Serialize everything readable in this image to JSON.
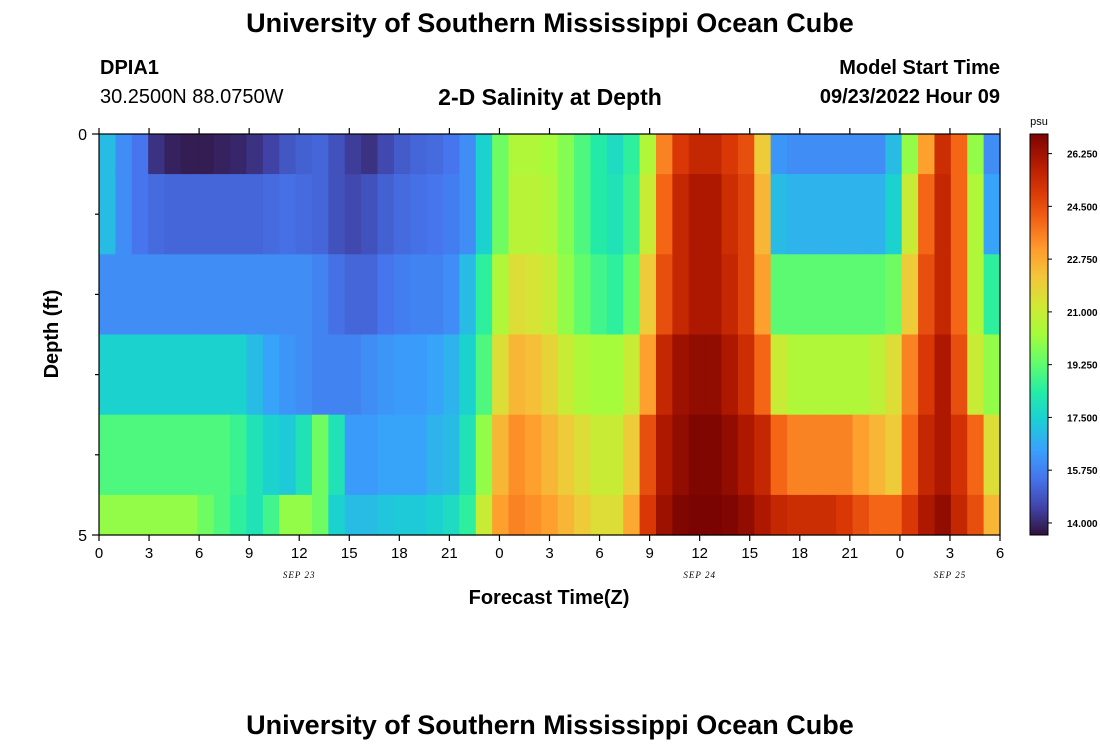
{
  "header": {
    "title": "University of Southern Mississippi Ocean Cube",
    "station_id": "DPIA1",
    "location": "30.2500N  88.0750W",
    "plot_title": "2-D Salinity at Depth",
    "model_start_label": "Model Start Time",
    "model_start_value": "09/23/2022 Hour 09"
  },
  "footer": {
    "title": "University of Southern Mississippi Ocean Cube"
  },
  "chart_data": {
    "type": "heatmap",
    "title": "2-D Salinity at Depth",
    "xlabel": "Forecast Time(Z)",
    "ylabel": "Depth (ft)",
    "ylim": [
      0,
      5
    ],
    "y_ticks": [
      "0",
      "5"
    ],
    "x_hours": [
      0,
      54
    ],
    "x_tick_labels": [
      "0",
      "3",
      "6",
      "9",
      "12",
      "15",
      "18",
      "21",
      "0",
      "3",
      "6",
      "9",
      "12",
      "15",
      "18",
      "21",
      "0",
      "3",
      "6"
    ],
    "date_labels": [
      {
        "label": "SEP 23",
        "hour": 12
      },
      {
        "label": "SEP 24",
        "hour": 36
      },
      {
        "label": "SEP 25",
        "hour": 51
      }
    ],
    "colorbar": {
      "unit": "psu",
      "min": 13.6,
      "max": 26.9,
      "ticks": [
        "14.000",
        "15.750",
        "17.500",
        "19.250",
        "21.000",
        "22.750",
        "24.500",
        "26.250"
      ],
      "colors": [
        "#30123b",
        "#4145ab",
        "#4675ed",
        "#39a2fc",
        "#1bcfd4",
        "#24eca6",
        "#61fc6c",
        "#a4fc3b",
        "#d1e834",
        "#f3c63a",
        "#fe9b2d",
        "#f36315",
        "#d93806",
        "#b11901",
        "#7a0402"
      ]
    },
    "depth_rows": [
      "0-0.5 ft",
      "0.5-1.5 ft",
      "1.5-2.5 ft",
      "2.5-3.5 ft",
      "3.5-4.5 ft",
      "4.5-5 ft"
    ],
    "hourly_columns": [
      "hours 0-54 at 1-hour resolution, 55 values per depth row"
    ],
    "salinity": [
      [
        17,
        16,
        15.5,
        14.2,
        13.9,
        13.8,
        13.8,
        13.9,
        14,
        14.2,
        14.5,
        14.9,
        15.1,
        15.2,
        14.8,
        14.4,
        14.2,
        14.6,
        15,
        15.2,
        15.3,
        15.5,
        16,
        17.5,
        19.5,
        20.5,
        20.5,
        20.3,
        19.8,
        19,
        18.3,
        17.8,
        18.5,
        20.5,
        23.5,
        25,
        25.5,
        25.5,
        25,
        24.5,
        22,
        16.2,
        16,
        16,
        16,
        16,
        16,
        16,
        17,
        20,
        23,
        25.3,
        24,
        20,
        16
      ],
      [
        17,
        16,
        15.5,
        15.3,
        15.2,
        15.2,
        15.2,
        15.2,
        15.2,
        15.2,
        15.3,
        15.4,
        15.3,
        15.2,
        14.8,
        14.6,
        14.8,
        15.1,
        15.3,
        15.4,
        15.5,
        15.7,
        16,
        17.5,
        19.5,
        20.7,
        20.7,
        20.5,
        19.8,
        19,
        18.3,
        18,
        18.7,
        21,
        24,
        25.5,
        26,
        26,
        25.3,
        24.8,
        22.5,
        17,
        16.8,
        16.8,
        16.8,
        16.8,
        16.8,
        16.8,
        17.5,
        21,
        24,
        25.5,
        24,
        20.5,
        16.5
      ],
      [
        16,
        16,
        16,
        16,
        16,
        16,
        16,
        16,
        16,
        16,
        16,
        16,
        16,
        15.8,
        15.4,
        15.2,
        15.2,
        15.5,
        15.7,
        15.8,
        15.8,
        16,
        17,
        18.5,
        20.5,
        21.5,
        21.3,
        21,
        20,
        19.3,
        18.8,
        18.5,
        19.3,
        22,
        24.5,
        25.5,
        26,
        26,
        25.5,
        24.8,
        23,
        19.2,
        19.2,
        19.2,
        19.2,
        19.2,
        19.2,
        19.2,
        19.5,
        22,
        24.5,
        25.5,
        24,
        20.5,
        18.5
      ],
      [
        17.5,
        17.5,
        17.5,
        17.5,
        17.5,
        17.5,
        17.5,
        17.5,
        17.5,
        17,
        16.5,
        16.2,
        16,
        15.8,
        15.8,
        15.8,
        16,
        16.2,
        16.3,
        16.3,
        16.5,
        16.8,
        17.5,
        19,
        21.5,
        22.5,
        22.3,
        21.8,
        21,
        20.5,
        20.3,
        20.3,
        21,
        23,
        25.5,
        26.3,
        26.5,
        26.5,
        26,
        25.3,
        24,
        21,
        20.5,
        20.5,
        20.5,
        20.5,
        20.5,
        20.8,
        21.5,
        23.5,
        25,
        26,
        24.5,
        21,
        20
      ],
      [
        19,
        19,
        19,
        19,
        19,
        19,
        19,
        19,
        18.7,
        18,
        17.5,
        17.3,
        18,
        19.5,
        18,
        16.3,
        16.3,
        16.5,
        16.5,
        16.5,
        16.8,
        17,
        18,
        20,
        22.5,
        23.3,
        23,
        22.5,
        22,
        21.5,
        21,
        21,
        22,
        24.5,
        26,
        26.5,
        26.8,
        26.8,
        26.5,
        26,
        25.5,
        24,
        23.5,
        23.5,
        23.5,
        23.5,
        23,
        22.5,
        22,
        24,
        25.5,
        26,
        25.2,
        24,
        21.5
      ],
      [
        20,
        20,
        20,
        20,
        20,
        20,
        19.5,
        19,
        18.5,
        18,
        18.8,
        20,
        20,
        19.5,
        17.5,
        17,
        17,
        17.2,
        17.3,
        17.3,
        17.5,
        17.8,
        18.5,
        21,
        23,
        23.5,
        23.3,
        23,
        22.5,
        22,
        21.5,
        21.5,
        22.8,
        25,
        26.3,
        26.8,
        27,
        27,
        26.8,
        26.5,
        26,
        25.5,
        25.3,
        25.3,
        25.3,
        25,
        24.5,
        24,
        24,
        25,
        26,
        26.5,
        25.5,
        24.5,
        22.5
      ]
    ]
  }
}
